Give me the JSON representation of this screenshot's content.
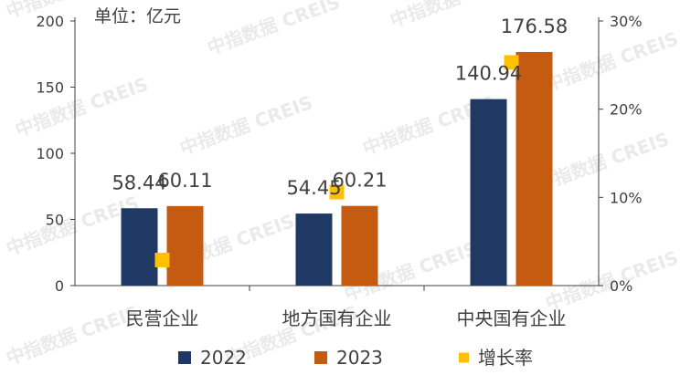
{
  "unit_label": "单位：亿元",
  "watermark": "中指数据 CREIS",
  "colors": {
    "series_2022": "#203864",
    "series_2023": "#c55a11",
    "growth": "#ffc000",
    "axis": "#404040",
    "text": "#404040"
  },
  "chart_data": {
    "type": "bar",
    "categories": [
      "民营企业",
      "地方国有企业",
      "中央国有企业"
    ],
    "series": [
      {
        "name": "2022",
        "values": [
          58.44,
          54.45,
          140.94
        ],
        "labels": [
          "58.44",
          "54.45",
          "140.94"
        ]
      },
      {
        "name": "2023",
        "values": [
          60.11,
          60.21,
          176.58
        ],
        "labels": [
          "60.11",
          "60.21",
          "176.58"
        ]
      }
    ],
    "growth_series": {
      "name": "增长率",
      "values": [
        2.9,
        10.6,
        25.3
      ]
    },
    "y_left": {
      "ticks": [
        "0",
        "50",
        "100",
        "150",
        "200"
      ],
      "ylim": [
        0,
        200
      ]
    },
    "y_right": {
      "ticks": [
        "0%",
        "10%",
        "20%",
        "30%"
      ],
      "ylim": [
        0,
        30
      ]
    },
    "legend_position": "bottom"
  }
}
